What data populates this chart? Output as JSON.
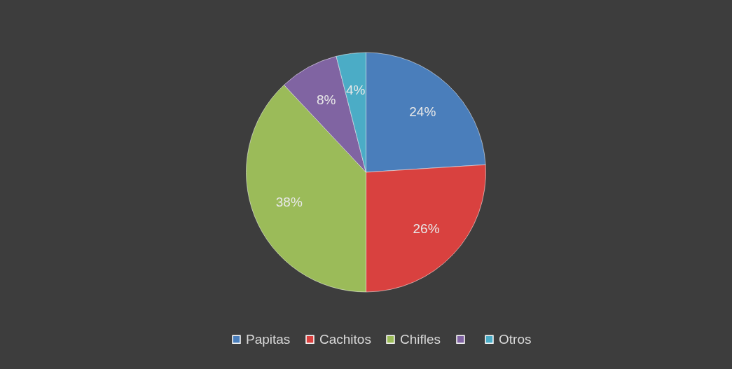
{
  "chart_data": {
    "type": "pie",
    "categories": [
      "Papitas",
      "Cachitos",
      "Chifles",
      null,
      "Otros"
    ],
    "values": [
      24,
      26,
      38,
      8,
      4
    ],
    "colors": [
      "#4a7ebb",
      "#d9413f",
      "#9bbb59",
      "#8064a2",
      "#4bacc6"
    ],
    "value_labels": [
      "24%",
      "26%",
      "38%",
      "8%",
      "4%"
    ],
    "legend": "bottom"
  }
}
